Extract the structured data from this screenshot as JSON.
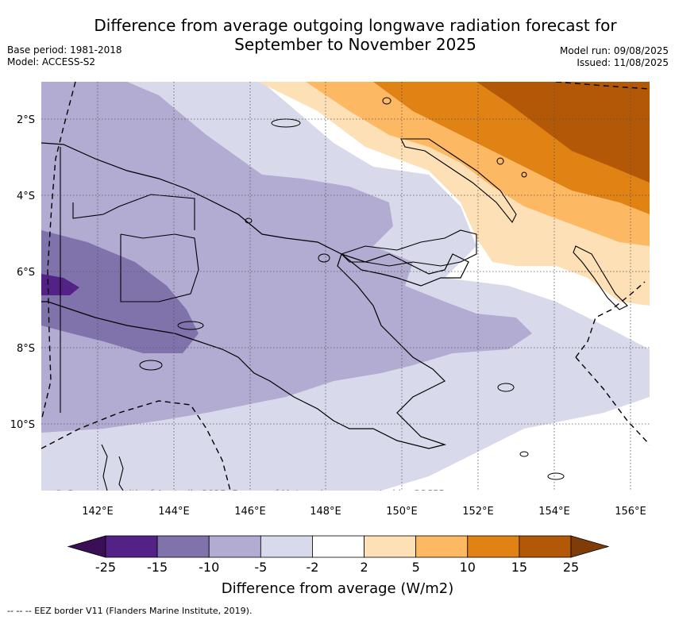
{
  "title": "Difference from average outgoing longwave radiation forecast for September to November 2025",
  "meta_left": {
    "base_period": "Base period: 1981-2018",
    "model": "Model: ACCESS-S2"
  },
  "meta_right": {
    "model_run": "Model run: 09/08/2025",
    "issued": "Issued: 11/08/2025"
  },
  "map": {
    "credit": "© Commonwealth of Australia 2025, Bureau of Meteorology, supported by COSPPac",
    "lon_ticks": [
      "142°E",
      "144°E",
      "146°E",
      "148°E",
      "150°E",
      "152°E",
      "154°E",
      "156°E"
    ],
    "lat_ticks": [
      "2°S",
      "4°S",
      "6°S",
      "8°S",
      "10°S"
    ],
    "gridlines": true
  },
  "colorbar": {
    "title": "Difference from average (W/m2)",
    "levels": [
      "-25",
      "-15",
      "-10",
      "-5",
      "-2",
      "2",
      "5",
      "10",
      "15",
      "25"
    ],
    "colors": [
      "#3b0f55",
      "#542187",
      "#8073ac",
      "#b2abd2",
      "#d8daeb",
      "#ffffff",
      "#fee0b6",
      "#fdb863",
      "#e08214",
      "#b35806",
      "#7f3b08"
    ]
  },
  "footnote": "--  --  -- EEZ border V11 (Flanders Marine Institute, 2019)."
}
